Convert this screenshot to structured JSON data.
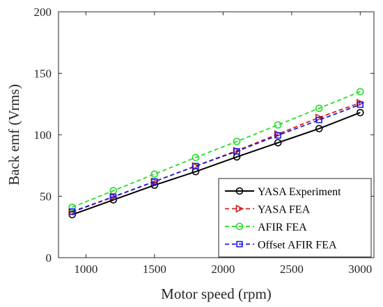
{
  "chart_data": {
    "type": "line",
    "xlabel": "Motor speed (rpm)",
    "ylabel": "Back emf (Vrms)",
    "xlim": [
      800,
      3100
    ],
    "ylim": [
      0,
      200
    ],
    "xticks": [
      1000,
      1500,
      2000,
      2500,
      3000
    ],
    "yticks": [
      0,
      50,
      100,
      150,
      200
    ],
    "x": [
      900,
      1200,
      1500,
      1800,
      2100,
      2400,
      2700,
      3000
    ],
    "grid": false,
    "legend_position": "bottom-right",
    "series": [
      {
        "name": "YASA Experiment",
        "color": "#000000",
        "dash": "solid",
        "marker": "circle",
        "values": [
          35,
          47,
          59,
          70,
          82,
          93.5,
          105,
          118
        ]
      },
      {
        "name": "YASA FEA",
        "color": "#d62020",
        "dash": "dashed",
        "marker": "triangle-right",
        "values": [
          37,
          49.5,
          62,
          74.5,
          87,
          100.5,
          114,
          126
        ]
      },
      {
        "name": "AFIR FEA",
        "color": "#22dd22",
        "dash": "dashed",
        "marker": "circle",
        "values": [
          41,
          54.5,
          68,
          81.5,
          94.5,
          108,
          121.5,
          135
        ]
      },
      {
        "name": "Offset AFIR FEA",
        "color": "#1a1adb",
        "dash": "dashed",
        "marker": "square",
        "values": [
          37.5,
          49.5,
          62,
          74.5,
          86.5,
          99.5,
          112,
          124.5
        ]
      }
    ]
  }
}
